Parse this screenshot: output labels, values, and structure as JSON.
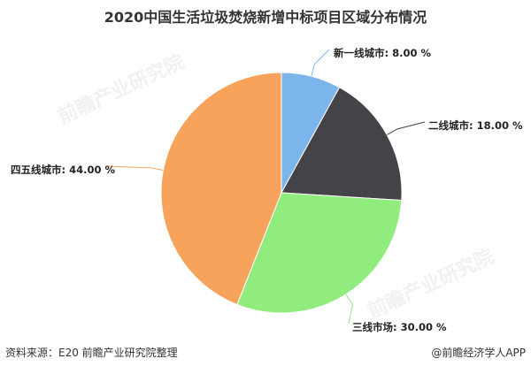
{
  "chart_data": {
    "type": "pie",
    "title": "2020中国生活垃圾焚烧新增中标项目区域分布情况",
    "categories": [
      "新一线城市",
      "二线城市",
      "三线市场",
      "四五线城市"
    ],
    "values": [
      8.0,
      18.0,
      30.0,
      44.0
    ],
    "labels": [
      "新一线城市: 8.00 %",
      "二线城市: 18.00 %",
      "三线市场: 30.00 %",
      "四五线城市: 44.00 %"
    ],
    "colors": [
      "#7cb5ec",
      "#434348",
      "#90ed7d",
      "#f7a35c"
    ],
    "unit": "%"
  },
  "footer": {
    "source": "资料来源：E20 前瞻产业研究院整理",
    "credit": "@前瞻经济学人APP"
  },
  "watermark": "前瞻产业研究院"
}
